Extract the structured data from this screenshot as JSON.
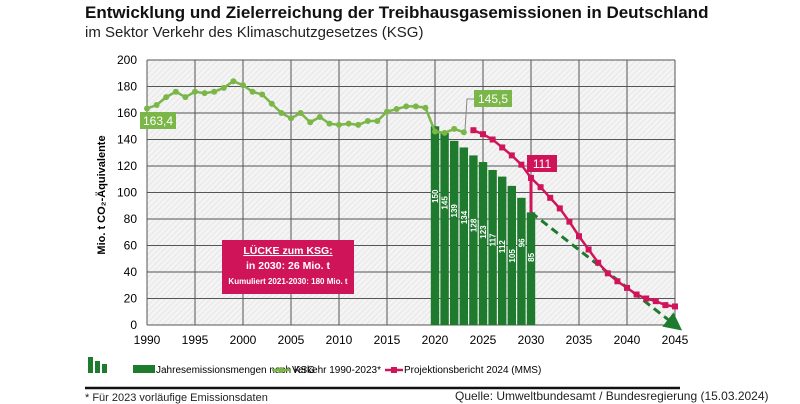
{
  "title": "Entwicklung und Zielerreichung der Treibhausgasemissionen in Deutschland",
  "subtitle": "im Sektor Verkehr des Klimaschutzgesetzes (KSG)",
  "chart_data": {
    "type": "bar+line",
    "ylabel": "Mio. t CO₂-Äquivalente",
    "xlim": [
      1990,
      2045
    ],
    "ylim": [
      0,
      200
    ],
    "xticks": [
      1990,
      1995,
      2000,
      2005,
      2010,
      2015,
      2020,
      2025,
      2030,
      2035,
      2040,
      2045
    ],
    "yticks": [
      0,
      20,
      40,
      60,
      80,
      100,
      120,
      140,
      160,
      180,
      200
    ],
    "grid": true,
    "colors": {
      "bars": "#1e7b2e",
      "verkehr": "#7ab648",
      "projektion": "#d0145a",
      "target_line": "#1e7b2e"
    },
    "bars": {
      "name": "Jahresemissionsmengen nach KSG",
      "x": [
        2020,
        2021,
        2022,
        2023,
        2024,
        2025,
        2026,
        2027,
        2028,
        2029,
        2030
      ],
      "values": [
        150,
        145,
        139,
        134,
        128,
        123,
        117,
        112,
        105,
        96,
        85
      ]
    },
    "verkehr": {
      "name": "Verkehr 1990-2023*",
      "x": [
        1990,
        1991,
        1992,
        1993,
        1994,
        1995,
        1996,
        1997,
        1998,
        1999,
        2000,
        2001,
        2002,
        2003,
        2004,
        2005,
        2006,
        2007,
        2008,
        2009,
        2010,
        2011,
        2012,
        2013,
        2014,
        2015,
        2016,
        2017,
        2018,
        2019,
        2020,
        2021,
        2022,
        2023
      ],
      "values": [
        163.4,
        166,
        172,
        176,
        172,
        176,
        175,
        176,
        179,
        184,
        181,
        176,
        174,
        167,
        160,
        156,
        160,
        153,
        157,
        152,
        151,
        152,
        151,
        154,
        154,
        161,
        163,
        165,
        165,
        164,
        146,
        145,
        148,
        145.5
      ]
    },
    "projektion": {
      "name": "Projektionsbericht 2024 (MMS)",
      "x": [
        2024,
        2025,
        2026,
        2027,
        2028,
        2029,
        2030,
        2031,
        2032,
        2033,
        2034,
        2035,
        2036,
        2037,
        2038,
        2039,
        2040,
        2041,
        2042,
        2043,
        2044,
        2045
      ],
      "values": [
        147,
        144,
        140,
        134,
        128,
        121,
        111,
        104,
        96,
        88,
        78,
        67,
        57,
        47,
        39,
        33,
        28,
        23,
        20,
        18,
        15,
        14
      ]
    },
    "target_path": {
      "x": [
        2030,
        2045
      ],
      "values": [
        85,
        0
      ]
    },
    "annotations": {
      "start": "163,4",
      "end": "145,5",
      "proj2030": "111"
    },
    "gap_box": {
      "line1": "LÜCKE zum KSG:",
      "line2": "in 2030: 26 Mio. t",
      "line3": "Kumuliert 2021-2030: 180 Mio. t"
    }
  },
  "footer": {
    "note": "* Für 2023 vorläufige Emissionsdaten",
    "source": "Quelle: Umweltbundesamt / Bundesregierung  (15.03.2024)"
  }
}
